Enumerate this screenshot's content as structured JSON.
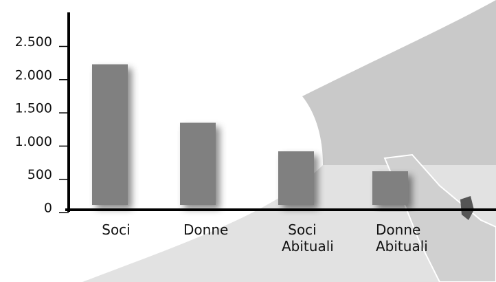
{
  "chart_data": {
    "type": "bar",
    "categories": [
      "Soci",
      "Donne",
      "Soci Abituali",
      "Donne Abituali"
    ],
    "values": [
      2200,
      1320,
      890,
      590
    ],
    "color": "#808080",
    "ylim": [
      0,
      2650
    ],
    "yticks": [
      0,
      500,
      {
        "value": 1000,
        "label": "1.000"
      },
      {
        "value": 1500,
        "label": "1.500"
      },
      {
        "value": 2000,
        "label": "2.000"
      },
      {
        "value": 2500,
        "label": "2.500"
      }
    ]
  }
}
